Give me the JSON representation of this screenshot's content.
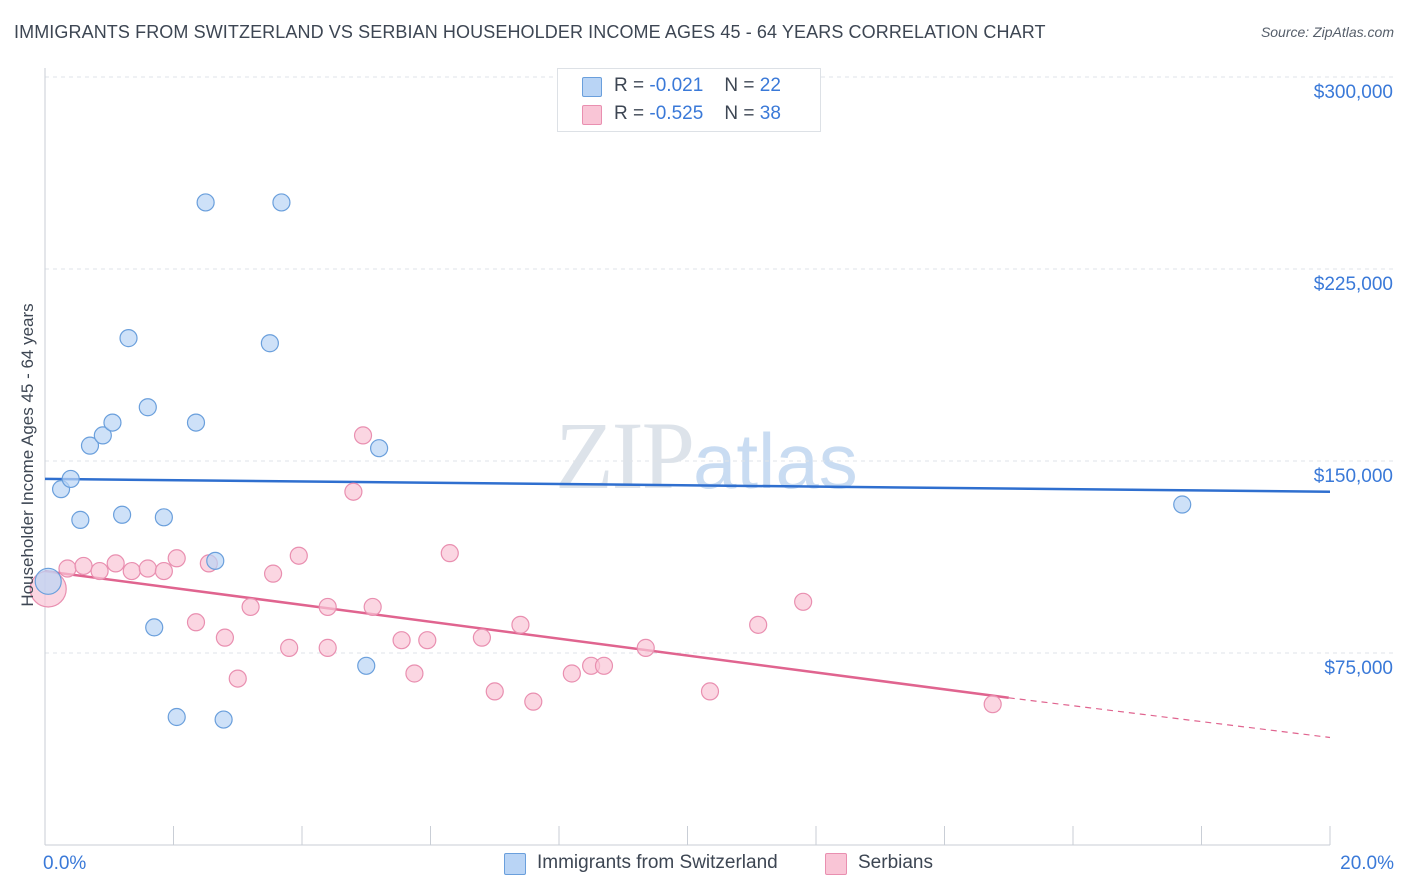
{
  "title": "IMMIGRANTS FROM SWITZERLAND VS SERBIAN HOUSEHOLDER INCOME AGES 45 - 64 YEARS CORRELATION CHART",
  "source": "Source: ZipAtlas.com",
  "watermark": {
    "zip": "ZIP",
    "atlas": "atlas"
  },
  "legend": {
    "series1": {
      "r_label": "R =",
      "r_value": "-0.021",
      "n_label": "N =",
      "n_value": "22"
    },
    "series2": {
      "r_label": "R =",
      "r_value": "-0.525",
      "n_label": "N =",
      "n_value": "38"
    }
  },
  "colors": {
    "blue_fill": "#b9d4f5",
    "blue_stroke": "#6a9fdc",
    "blue_line": "#2f6fcf",
    "pink_fill": "#f9c5d6",
    "pink_stroke": "#e98fb0",
    "pink_line": "#e0648f",
    "axis_text": "#3a79d8"
  },
  "chart_data": {
    "type": "scatter",
    "xlabel": "",
    "ylabel": "Householder Income Ages 45 - 64 years",
    "xlim": [
      0,
      20
    ],
    "ylim": [
      0,
      300000
    ],
    "x_tick_labels": [
      "0.0%",
      "20.0%"
    ],
    "y_ticks": [
      75000,
      150000,
      225000,
      300000
    ],
    "y_tick_labels": [
      "$75,000",
      "$150,000",
      "$225,000",
      "$300,000"
    ],
    "grid": true,
    "legend_position": "top-center",
    "series": [
      {
        "name": "Immigrants from Switzerland",
        "color": "#b9d4f5",
        "points": [
          [
            0.05,
            103000
          ],
          [
            0.25,
            139000
          ],
          [
            0.4,
            143000
          ],
          [
            0.55,
            127000
          ],
          [
            0.7,
            156000
          ],
          [
            0.9,
            160000
          ],
          [
            1.05,
            165000
          ],
          [
            1.2,
            129000
          ],
          [
            1.3,
            198000
          ],
          [
            1.6,
            171000
          ],
          [
            1.7,
            85000
          ],
          [
            1.85,
            128000
          ],
          [
            2.05,
            50000
          ],
          [
            2.35,
            165000
          ],
          [
            2.5,
            251000
          ],
          [
            2.65,
            111000
          ],
          [
            2.78,
            49000
          ],
          [
            3.5,
            196000
          ],
          [
            3.68,
            251000
          ],
          [
            5.0,
            70000
          ],
          [
            5.2,
            155000
          ],
          [
            17.7,
            133000
          ]
        ],
        "trend": {
          "x": [
            0,
            20
          ],
          "y": [
            143000,
            138000
          ],
          "style": "solid"
        }
      },
      {
        "name": "Serbians",
        "color": "#f9c5d6",
        "points": [
          [
            0.05,
            100000
          ],
          [
            0.35,
            108000
          ],
          [
            0.6,
            109000
          ],
          [
            0.85,
            107000
          ],
          [
            1.1,
            110000
          ],
          [
            1.35,
            107000
          ],
          [
            1.6,
            108000
          ],
          [
            1.85,
            107000
          ],
          [
            2.05,
            112000
          ],
          [
            2.35,
            87000
          ],
          [
            2.55,
            110000
          ],
          [
            2.8,
            81000
          ],
          [
            3.0,
            65000
          ],
          [
            3.2,
            93000
          ],
          [
            3.55,
            106000
          ],
          [
            3.8,
            77000
          ],
          [
            3.95,
            113000
          ],
          [
            4.4,
            93000
          ],
          [
            4.4,
            77000
          ],
          [
            4.8,
            138000
          ],
          [
            4.95,
            160000
          ],
          [
            5.1,
            93000
          ],
          [
            5.55,
            80000
          ],
          [
            5.75,
            67000
          ],
          [
            5.95,
            80000
          ],
          [
            6.3,
            114000
          ],
          [
            6.8,
            81000
          ],
          [
            7.0,
            60000
          ],
          [
            7.4,
            86000
          ],
          [
            7.6,
            56000
          ],
          [
            8.2,
            67000
          ],
          [
            8.5,
            70000
          ],
          [
            8.7,
            70000
          ],
          [
            9.35,
            77000
          ],
          [
            10.35,
            60000
          ],
          [
            11.1,
            86000
          ],
          [
            11.8,
            95000
          ],
          [
            14.75,
            55000
          ]
        ],
        "trend": {
          "x": [
            0,
            15.0,
            20
          ],
          "y": [
            107000,
            57500,
            42000
          ],
          "style": "solid-then-dashed"
        }
      }
    ]
  }
}
